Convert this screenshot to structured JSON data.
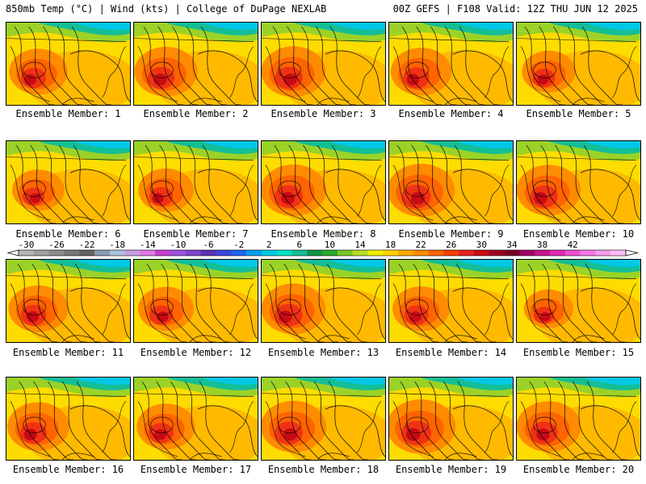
{
  "header": {
    "left": "850mb Temp (°C) | Wind (kts) | College of DuPage NEXLAB",
    "right": "00Z GEFS | F108 Valid: 12Z THU JUN 12 2025"
  },
  "panels": [
    {
      "label": "Ensemble Member: 1",
      "heat": 0.7
    },
    {
      "label": "Ensemble Member: 2",
      "heat": 0.78
    },
    {
      "label": "Ensemble Member: 3",
      "heat": 0.8
    },
    {
      "label": "Ensemble Member: 4",
      "heat": 0.74
    },
    {
      "label": "Ensemble Member: 5",
      "heat": 0.62
    },
    {
      "label": "Ensemble Member: 6",
      "heat": 0.6
    },
    {
      "label": "Ensemble Member: 7",
      "heat": 0.65
    },
    {
      "label": "Ensemble Member: 8",
      "heat": 0.82
    },
    {
      "label": "Ensemble Member: 9",
      "heat": 0.85
    },
    {
      "label": "Ensemble Member: 10",
      "heat": 0.8
    },
    {
      "label": "Ensemble Member: 11",
      "heat": 0.72
    },
    {
      "label": "Ensemble Member: 12",
      "heat": 0.66
    },
    {
      "label": "Ensemble Member: 13",
      "heat": 0.8
    },
    {
      "label": "Ensemble Member: 14",
      "heat": 0.68
    },
    {
      "label": "Ensemble Member: 15",
      "heat": 0.55
    },
    {
      "label": "Ensemble Member: 16",
      "heat": 0.76
    },
    {
      "label": "Ensemble Member: 17",
      "heat": 0.7
    },
    {
      "label": "Ensemble Member: 18",
      "heat": 0.82
    },
    {
      "label": "Ensemble Member: 19",
      "heat": 0.88
    },
    {
      "label": "Ensemble Member: 20",
      "heat": 0.8
    }
  ],
  "colorbar": {
    "ticks": [
      "-30",
      "-26",
      "-22",
      "-18",
      "-14",
      "-10",
      "-6",
      "-2",
      "2",
      "6",
      "10",
      "14",
      "18",
      "22",
      "26",
      "30",
      "34",
      "38",
      "42"
    ],
    "colors": [
      "#b4b4b4",
      "#a0a0a0",
      "#8c8c8c",
      "#787878",
      "#646464",
      "#8c9bb4",
      "#aac3dc",
      "#c8a0e6",
      "#e178e6",
      "#c83cd2",
      "#a050dc",
      "#7e46c8",
      "#5a32b4",
      "#3c46dc",
      "#1e64f0",
      "#00a0f0",
      "#00c8e6",
      "#00e1c8",
      "#14be96",
      "#0a9646",
      "#28aa28",
      "#78c828",
      "#b4dc28",
      "#f0f000",
      "#ffd200",
      "#ffaa00",
      "#ff8c00",
      "#ff6400",
      "#ff3c00",
      "#e61e1e",
      "#c80a14",
      "#a0001e",
      "#780028",
      "#a00064",
      "#c8148c",
      "#e628b4",
      "#f050d2",
      "#f578e6",
      "#fa9bf0",
      "#ffbef5"
    ]
  }
}
